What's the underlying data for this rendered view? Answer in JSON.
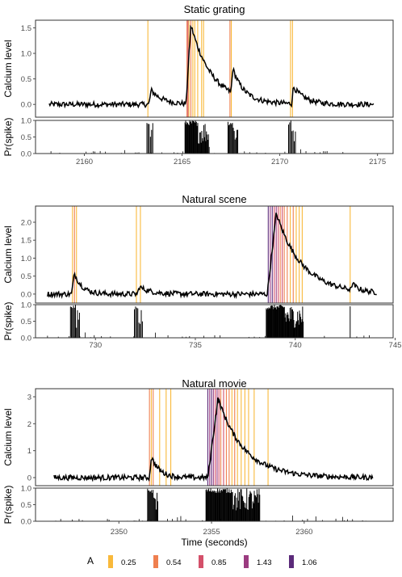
{
  "chart_data": [
    {
      "type": "line",
      "title": "Static grating",
      "ylabel": "Calcium level",
      "ylim": [
        -0.25,
        1.65
      ],
      "yticks": [
        0.0,
        0.5,
        1.0,
        1.5
      ],
      "ytick_labels": [
        "0.0",
        "0.5",
        "1.0",
        "1.5"
      ],
      "xlim": [
        2157.5,
        2175.8
      ],
      "xticks": [
        2160,
        2165,
        2170,
        2175
      ],
      "xtick_labels": [
        "2160",
        "2165",
        "2170",
        "2175"
      ],
      "baseline_start": 2158.2,
      "baseline_end": 2174.8,
      "events": [
        {
          "t": 2163.3,
          "amp": 0.28,
          "decay": 0.6,
          "rise": 0.12
        },
        {
          "t": 2165.2,
          "amp": 1.55,
          "decay": 1.1,
          "rise": 0.25
        },
        {
          "t": 2167.5,
          "amp": 0.48,
          "decay": 0.5,
          "rise": 0.1
        },
        {
          "t": 2170.6,
          "amp": 0.33,
          "decay": 0.6,
          "rise": 0.1
        }
      ],
      "spike_lines": [
        {
          "t": 2163.25,
          "a": 0.25
        },
        {
          "t": 2165.25,
          "a": 0.54
        },
        {
          "t": 2165.3,
          "a": 0.85
        },
        {
          "t": 2165.35,
          "a": 0.25
        },
        {
          "t": 2165.45,
          "a": 0.54
        },
        {
          "t": 2165.55,
          "a": 0.25
        },
        {
          "t": 2165.65,
          "a": 0.25
        },
        {
          "t": 2165.8,
          "a": 0.25
        },
        {
          "t": 2166.0,
          "a": 0.25
        },
        {
          "t": 2166.1,
          "a": 0.25
        },
        {
          "t": 2167.45,
          "a": 0.54
        },
        {
          "t": 2167.52,
          "a": 0.25
        },
        {
          "t": 2170.55,
          "a": 0.25
        },
        {
          "t": 2170.65,
          "a": 0.25
        }
      ],
      "prob_ylabel": "Pr(spike)",
      "prob_ylim": [
        0,
        1
      ],
      "prob_yticks": [
        0.0,
        0.5,
        1.0
      ],
      "prob_ytick_labels": [
        "0.0",
        "0.5",
        "1.0"
      ],
      "prob_dense": [
        {
          "start": 2165.15,
          "end": 2166.35,
          "n": 36
        },
        {
          "start": 2167.35,
          "end": 2167.85,
          "n": 12
        },
        {
          "start": 2163.2,
          "end": 2163.5,
          "n": 6
        },
        {
          "start": 2170.45,
          "end": 2170.8,
          "n": 7
        }
      ]
    },
    {
      "type": "line",
      "title": "Natural scene",
      "ylabel": "Calcium level",
      "ylim": [
        -0.25,
        2.45
      ],
      "yticks": [
        0.0,
        0.5,
        1.0,
        1.5,
        2.0
      ],
      "ytick_labels": [
        "0.0",
        "0.5",
        "1.0",
        "1.5",
        "2.0"
      ],
      "xlim": [
        727.0,
        744.9
      ],
      "xticks": [
        730,
        735,
        740,
        745
      ],
      "xtick_labels": [
        "730",
        "735",
        "740",
        "745"
      ],
      "baseline_start": 727.6,
      "baseline_end": 744.1,
      "events": [
        {
          "t": 728.8,
          "amp": 0.58,
          "decay": 0.4,
          "rise": 0.15
        },
        {
          "t": 732.1,
          "amp": 0.2,
          "decay": 0.6,
          "rise": 0.1
        },
        {
          "t": 738.6,
          "amp": 2.25,
          "decay": 1.3,
          "rise": 0.45
        },
        {
          "t": 742.8,
          "amp": 0.18,
          "decay": 0.3,
          "rise": 0.05
        }
      ],
      "spike_lines": [
        {
          "t": 728.85,
          "a": 0.25
        },
        {
          "t": 728.95,
          "a": 0.54
        },
        {
          "t": 729.05,
          "a": 0.25
        },
        {
          "t": 732.05,
          "a": 0.25
        },
        {
          "t": 732.25,
          "a": 0.25
        },
        {
          "t": 738.65,
          "a": 1.06
        },
        {
          "t": 738.75,
          "a": 1.43
        },
        {
          "t": 738.85,
          "a": 1.06
        },
        {
          "t": 738.95,
          "a": 0.85
        },
        {
          "t": 739.05,
          "a": 1.43
        },
        {
          "t": 739.15,
          "a": 0.85
        },
        {
          "t": 739.25,
          "a": 0.54
        },
        {
          "t": 739.35,
          "a": 0.85
        },
        {
          "t": 739.45,
          "a": 0.54
        },
        {
          "t": 739.6,
          "a": 0.54
        },
        {
          "t": 739.75,
          "a": 0.25
        },
        {
          "t": 739.9,
          "a": 0.54
        },
        {
          "t": 740.05,
          "a": 0.25
        },
        {
          "t": 740.2,
          "a": 0.25
        },
        {
          "t": 740.35,
          "a": 0.25
        },
        {
          "t": 742.75,
          "a": 0.25
        }
      ],
      "prob_ylabel": "Pr(spike)",
      "prob_ylim": [
        0,
        1
      ],
      "prob_yticks": [
        0.0,
        0.5,
        1.0
      ],
      "prob_ytick_labels": [
        "0.0",
        "0.5",
        "1.0"
      ],
      "prob_dense": [
        {
          "start": 738.55,
          "end": 740.4,
          "n": 60
        },
        {
          "start": 728.75,
          "end": 729.2,
          "n": 10
        },
        {
          "start": 731.95,
          "end": 732.35,
          "n": 8
        },
        {
          "start": 742.75,
          "end": 742.8,
          "n": 1
        }
      ]
    },
    {
      "type": "line",
      "title": "Natural movie",
      "ylabel": "Calcium level",
      "ylim": [
        -0.3,
        3.3
      ],
      "yticks": [
        0,
        1,
        2,
        3
      ],
      "ytick_labels": [
        "0",
        "1",
        "2",
        "3"
      ],
      "xlim": [
        2345.5,
        2364.8
      ],
      "xticks": [
        2350,
        2355,
        2360
      ],
      "xtick_labels": [
        "2350",
        "2355",
        "2360"
      ],
      "baseline_start": 2346.5,
      "baseline_end": 2363.7,
      "events": [
        {
          "t": 2351.65,
          "amp": 0.78,
          "decay": 0.45,
          "rise": 0.1
        },
        {
          "t": 2354.8,
          "amp": 2.95,
          "decay": 1.4,
          "rise": 0.55
        }
      ],
      "spike_lines": [
        {
          "t": 2351.65,
          "a": 0.54
        },
        {
          "t": 2351.75,
          "a": 0.25
        },
        {
          "t": 2351.85,
          "a": 0.54
        },
        {
          "t": 2352.2,
          "a": 0.25
        },
        {
          "t": 2352.55,
          "a": 0.25
        },
        {
          "t": 2352.8,
          "a": 0.25
        },
        {
          "t": 2354.8,
          "a": 1.06
        },
        {
          "t": 2354.9,
          "a": 1.43
        },
        {
          "t": 2355.0,
          "a": 1.06
        },
        {
          "t": 2355.1,
          "a": 1.43
        },
        {
          "t": 2355.2,
          "a": 0.85
        },
        {
          "t": 2355.3,
          "a": 1.43
        },
        {
          "t": 2355.4,
          "a": 0.85
        },
        {
          "t": 2355.5,
          "a": 0.54
        },
        {
          "t": 2355.65,
          "a": 0.85
        },
        {
          "t": 2355.8,
          "a": 0.54
        },
        {
          "t": 2355.95,
          "a": 0.54
        },
        {
          "t": 2356.1,
          "a": 0.25
        },
        {
          "t": 2356.25,
          "a": 0.54
        },
        {
          "t": 2356.4,
          "a": 0.25
        },
        {
          "t": 2356.6,
          "a": 0.25
        },
        {
          "t": 2356.8,
          "a": 0.25
        },
        {
          "t": 2357.0,
          "a": 0.25
        },
        {
          "t": 2357.3,
          "a": 0.25
        },
        {
          "t": 2358.05,
          "a": 0.25
        }
      ],
      "prob_ylabel": "Pr(spike)",
      "prob_ylim": [
        0,
        1
      ],
      "prob_yticks": [
        0.0,
        0.5,
        1.0
      ],
      "prob_ytick_labels": [
        "0.0",
        "0.5",
        "1.0"
      ],
      "prob_dense": [
        {
          "start": 2354.7,
          "end": 2357.6,
          "n": 80
        },
        {
          "start": 2351.55,
          "end": 2352.1,
          "n": 14
        }
      ],
      "xlabel": "Time (seconds)"
    }
  ],
  "legend": {
    "title": "A",
    "placement": "bottom",
    "items": [
      {
        "label": "0.25",
        "color": "#f9b93b"
      },
      {
        "label": "0.54",
        "color": "#ef7f4f"
      },
      {
        "label": "0.85",
        "color": "#d4506a"
      },
      {
        "label": "1.43",
        "color": "#9b3b80"
      },
      {
        "label": "1.06",
        "color": "#5b2a7a"
      }
    ]
  },
  "colors": {
    "trace": "#000000",
    "panel_border": "#333333",
    "tick": "#4d4d4d"
  }
}
